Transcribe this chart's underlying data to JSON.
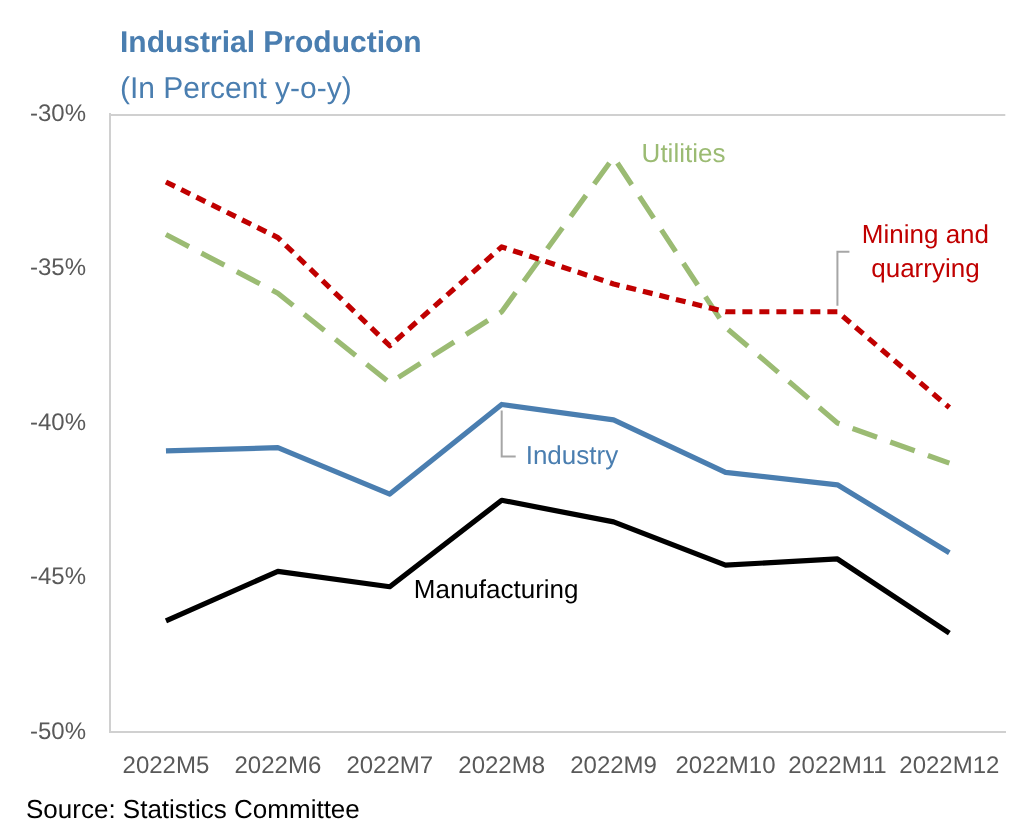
{
  "chart_data": {
    "type": "line",
    "title": "Industrial Production",
    "subtitle": "(In Percent y-o-y)",
    "annotations": [
      "Source: Statistics Committee"
    ],
    "categories": [
      "2022M5",
      "2022M6",
      "2022M7",
      "2022M8",
      "2022M9",
      "2022M10",
      "2022M11",
      "2022M12"
    ],
    "series": [
      {
        "name": "Industry",
        "color": "#4a7eb0",
        "line_style": "solid",
        "values": [
          -40.9,
          -40.8,
          -42.3,
          -39.4,
          -39.9,
          -41.6,
          -42.0,
          -44.2
        ]
      },
      {
        "name": "Manufacturing",
        "color": "#000000",
        "line_style": "solid",
        "values": [
          -46.4,
          -44.8,
          -45.3,
          -42.5,
          -43.2,
          -44.6,
          -44.4,
          -46.8
        ]
      },
      {
        "name": "Mining and quarrying",
        "color": "#c00000",
        "line_style": "dotted",
        "values": [
          -32.2,
          -34.0,
          -37.5,
          -34.3,
          -35.5,
          -36.4,
          -36.4,
          -39.5
        ]
      },
      {
        "name": "Utilities",
        "color": "#9bbb73",
        "line_style": "dashed",
        "values": [
          -33.9,
          -35.8,
          -38.7,
          -36.4,
          -31.4,
          -36.9,
          -40.0,
          -41.3
        ]
      }
    ],
    "ylim": [
      -50,
      -30
    ],
    "yticks": [
      {
        "value": -50,
        "label": "-50%"
      },
      {
        "value": -45,
        "label": "-45%"
      },
      {
        "value": -40,
        "label": "-40%"
      },
      {
        "value": -35,
        "label": "-35%"
      },
      {
        "value": -30,
        "label": "-30%"
      }
    ],
    "grid": false,
    "legend": false,
    "marker": "none"
  }
}
